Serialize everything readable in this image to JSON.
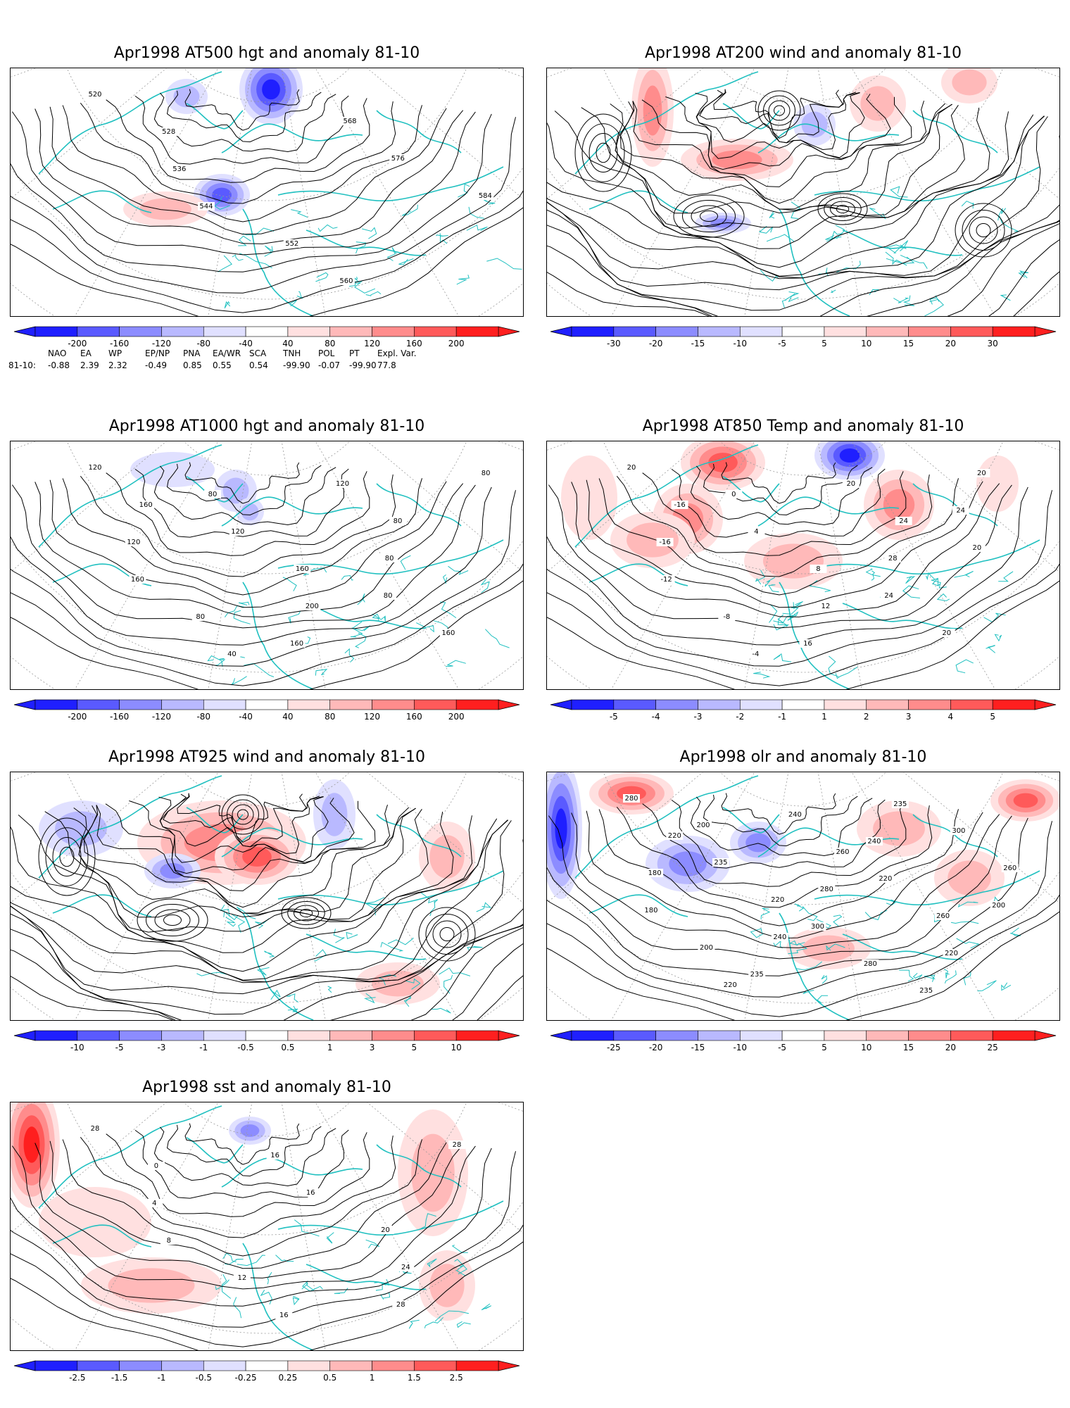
{
  "panels": [
    {
      "id": "p500",
      "title": "Apr1998 AT500 hgt and anomaly 81-10",
      "kind": "hgt",
      "contour_labels": [
        "520",
        "528",
        "536",
        "544",
        "552",
        "560",
        "568",
        "576",
        "584"
      ],
      "colorbar": {
        "labels": [
          "-200",
          "-160",
          "-120",
          "-80",
          "-40",
          "40",
          "80",
          "120",
          "160",
          "200"
        ]
      }
    },
    {
      "id": "p200",
      "title": "Apr1998 AT200 wind and anomaly 81-10",
      "kind": "wind",
      "contour_labels": [],
      "colorbar": {
        "labels": [
          "-30",
          "-20",
          "-15",
          "-10",
          "-5",
          "5",
          "10",
          "15",
          "20",
          "30"
        ]
      }
    },
    {
      "id": "p1000",
      "title": "Apr1998 AT1000 hgt and anomaly 81-10",
      "kind": "hgt",
      "contour_labels": [
        "120",
        "160",
        "120",
        "160",
        "80",
        "40",
        "80",
        "120",
        "160",
        "200",
        "160",
        "120",
        "80",
        "80",
        "80",
        "160",
        "80"
      ],
      "colorbar": {
        "labels": [
          "-200",
          "-160",
          "-120",
          "-80",
          "-40",
          "40",
          "80",
          "120",
          "160",
          "200"
        ]
      }
    },
    {
      "id": "p850",
      "title": "Apr1998 AT850 Temp and anomaly 81-10",
      "kind": "temp",
      "contour_labels": [
        "20",
        "-16",
        "-16",
        "-12",
        "-8",
        "-4",
        "0",
        "4",
        "8",
        "12",
        "16",
        "20",
        "24",
        "28",
        "24",
        "20",
        "20",
        "24",
        "20"
      ],
      "colorbar": {
        "labels": [
          "-5",
          "-4",
          "-3",
          "-2",
          "-1",
          "1",
          "2",
          "3",
          "4",
          "5"
        ]
      }
    },
    {
      "id": "p925",
      "title": "Apr1998 AT925 wind and anomaly 81-10",
      "kind": "wind",
      "contour_labels": [],
      "colorbar": {
        "labels": [
          "-10",
          "-5",
          "-3",
          "-1",
          "-0.5",
          "0.5",
          "1",
          "3",
          "5",
          "10"
        ]
      }
    },
    {
      "id": "polr",
      "title": "Apr1998 olr and anomaly 81-10",
      "kind": "olr",
      "contour_labels": [
        "280",
        "220",
        "180",
        "180",
        "200",
        "220",
        "200",
        "235",
        "220",
        "240",
        "235",
        "240",
        "260",
        "280",
        "300",
        "280",
        "235",
        "240",
        "220",
        "260",
        "220",
        "235",
        "300",
        "260",
        "200"
      ],
      "colorbar": {
        "labels": [
          "-25",
          "-20",
          "-15",
          "-10",
          "-5",
          "5",
          "10",
          "15",
          "20",
          "25"
        ]
      }
    },
    {
      "id": "psst",
      "title": "Apr1998 sst and anomaly 81-10",
      "kind": "sst",
      "contour_labels": [
        "28",
        "0",
        "4",
        "8",
        "12",
        "16",
        "16",
        "16",
        "20",
        "24",
        "28",
        "28"
      ],
      "colorbar": {
        "labels": [
          "-2.5",
          "-1.5",
          "-1",
          "-0.5",
          "-0.25",
          "0.25",
          "0.5",
          "1",
          "1.5",
          "2.5"
        ]
      }
    }
  ],
  "colors": {
    "blues": [
      "#1f1fff",
      "#5a5aff",
      "#8c8cff",
      "#b9b9ff",
      "#e0e0ff"
    ],
    "reds": [
      "#ffe0e0",
      "#ffb9b9",
      "#ff8c8c",
      "#ff5a5a",
      "#ff1f1f"
    ],
    "coast": "#20c0c0",
    "contour": "#000000",
    "grid": "#999999"
  },
  "index_table": {
    "header": [
      "NAO",
      "EA",
      "WP",
      "EP/NP",
      "PNA",
      "EA/WR",
      "SCA",
      "TNH",
      "POL",
      "PT",
      "Expl. Var."
    ],
    "row_label": "81-10:",
    "values": [
      "-0.88",
      "2.39",
      "2.32",
      "-0.49",
      "0.85",
      "0.55",
      "0.54",
      "-99.90",
      "-0.07",
      "-99.90",
      "77.8"
    ]
  }
}
